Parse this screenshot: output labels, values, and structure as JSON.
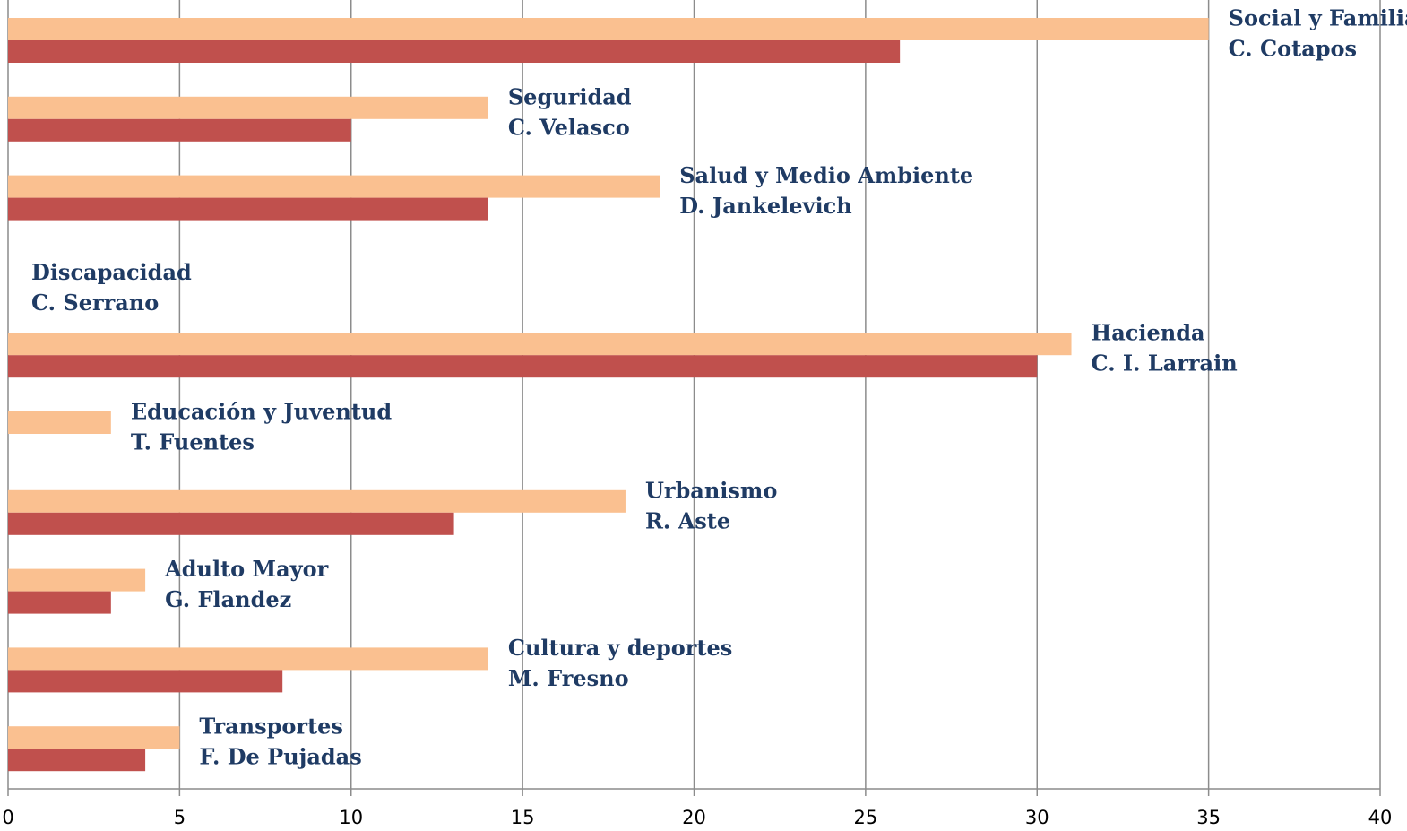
{
  "chart_data": {
    "type": "hbar",
    "categories": [
      [
        "Social y Familia",
        "C. Cotapos"
      ],
      [
        "Seguridad",
        "C. Velasco"
      ],
      [
        "Salud y Medio Ambiente",
        "D. Jankelevich"
      ],
      [
        "Discapacidad",
        "C. Serrano"
      ],
      [
        "Hacienda",
        "C. I. Larrain"
      ],
      [
        "Educación y Juventud",
        "T. Fuentes"
      ],
      [
        "Urbanismo",
        "R. Aste"
      ],
      [
        "Adulto Mayor",
        "G. Flandez"
      ],
      [
        "Cultura y deportes",
        "M. Fresno"
      ],
      [
        "Transportes",
        "F. De Pujadas"
      ]
    ],
    "series": [
      {
        "color": "#fac090",
        "values": [
          35,
          14,
          19,
          0,
          31,
          3,
          18,
          4,
          14,
          5
        ]
      },
      {
        "color": "#c0504d",
        "values": [
          26,
          10,
          14,
          0,
          30,
          0,
          13,
          3,
          8,
          4
        ]
      }
    ],
    "xlim": [
      0,
      40
    ],
    "xticks": [
      0,
      5,
      10,
      15,
      20,
      25,
      30,
      35,
      40
    ],
    "grid": true
  }
}
